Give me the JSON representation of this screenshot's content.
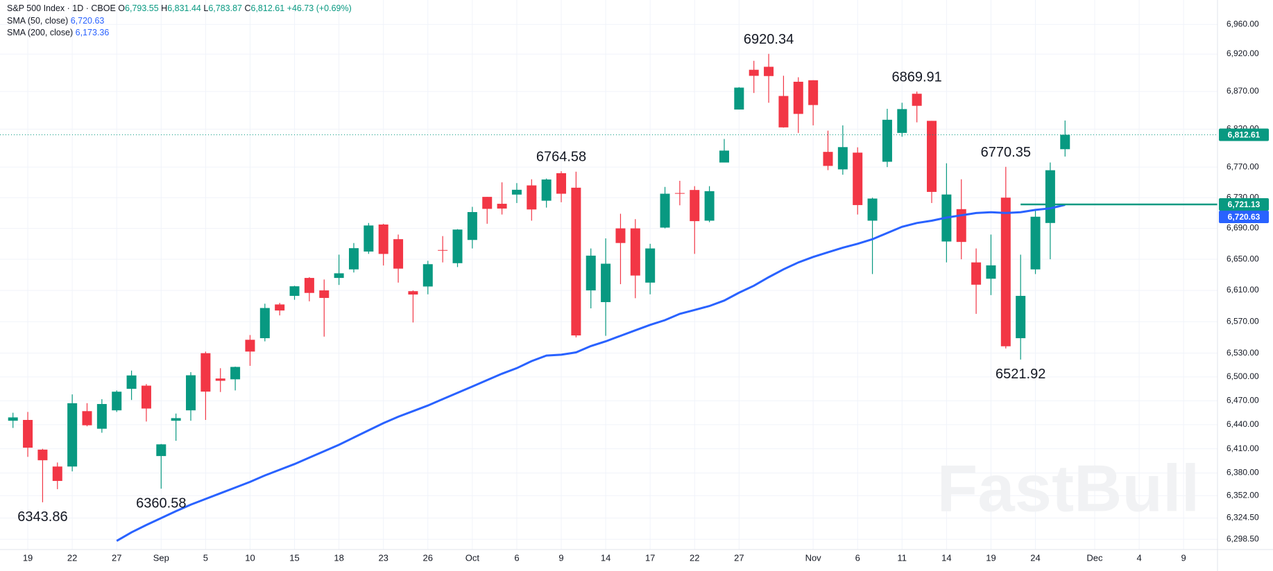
{
  "header": {
    "symbol": "S&P 500 Index · 1D · CBOE",
    "ohlc": [
      {
        "key": "O",
        "value": "6,793.55"
      },
      {
        "key": "H",
        "value": "6,831.44"
      },
      {
        "key": "L",
        "value": "6,783.87"
      },
      {
        "key": "C",
        "value": "6,812.61"
      }
    ],
    "change": "+46.73 (+0.69%)",
    "indicators": [
      {
        "name": "SMA (50, close)",
        "value": "6,720.63"
      },
      {
        "name": "SMA (200, close)",
        "value": "6,173.36"
      }
    ]
  },
  "chart_data": {
    "type": "candlestick",
    "log_scale": true,
    "grid": true,
    "up_color": "#089981",
    "down_color": "#f23645",
    "categories": [
      null,
      "19",
      null,
      null,
      "22",
      null,
      null,
      "27",
      null,
      null,
      "Sep",
      null,
      null,
      "5",
      null,
      null,
      "10",
      null,
      null,
      "15",
      null,
      null,
      "18",
      null,
      null,
      "23",
      null,
      null,
      "26",
      null,
      null,
      "Oct",
      null,
      null,
      "6",
      null,
      null,
      "9",
      null,
      null,
      "14",
      null,
      null,
      "17",
      null,
      null,
      "22",
      null,
      null,
      "27",
      null,
      null,
      null,
      null,
      "Nov",
      null,
      null,
      "6",
      null,
      null,
      "11",
      null,
      null,
      "14",
      null,
      null,
      "19",
      null,
      null,
      "24",
      null,
      null,
      null,
      "Dec",
      null,
      null,
      "4",
      null,
      null,
      "9",
      null,
      null
    ],
    "open": [
      6445,
      6446,
      6409,
      6388,
      6388,
      6457,
      6435,
      6458,
      6485,
      6489,
      6401,
      6445,
      6458,
      6530,
      6498,
      6497,
      6547,
      6549,
      6592,
      6603,
      6626,
      6610,
      6626,
      6637,
      6660,
      6695,
      6676,
      6609,
      6615,
      6662,
      6645,
      6675,
      6731,
      6722,
      6734,
      6746,
      6726,
      6762,
      6743,
      6610,
      6595,
      6690,
      6690,
      6620,
      6691,
      6736,
      6740,
      6700,
      6776,
      6846,
      6899,
      6903,
      6864,
      6883,
      6885,
      6790,
      6767,
      6789,
      6700,
      6777,
      6815,
      6867,
      6831,
      6673,
      6715,
      6646,
      6625,
      6730,
      6549,
      6637,
      6697,
      6793.55,
      null,
      null,
      null,
      null,
      null,
      null,
      null,
      null,
      null,
      null
    ],
    "high": [
      6455,
      6456,
      6410,
      6393,
      6478,
      6467,
      6472,
      6483,
      6508,
      6491,
      6416,
      6454,
      6506,
      6532,
      6511,
      6513,
      6553,
      6593,
      6594,
      6616,
      6627,
      6624,
      6656,
      6671,
      6697,
      6696,
      6682,
      6610,
      6648,
      6680,
      6689,
      6718,
      6731,
      6750,
      6749,
      6754,
      6755,
      6764.58,
      6764,
      6664,
      6677,
      6709,
      6702,
      6670,
      6744,
      6752,
      6745,
      6745,
      6807,
      6875.8,
      6911,
      6920.34,
      6891,
      6889,
      6885,
      6818,
      6825,
      6796,
      6730,
      6847,
      6855,
      6869.91,
      6831,
      6775,
      6754,
      6664,
      6682,
      6770.35,
      6656,
      6713,
      6776,
      6831.44,
      null,
      null,
      null,
      null,
      null,
      null,
      null,
      null,
      null,
      null
    ],
    "low": [
      6436,
      6400,
      6343.86,
      6360,
      6382,
      6438,
      6430,
      6456,
      6471,
      6444,
      6360.58,
      6420,
      6445,
      6446,
      6481,
      6483,
      6514,
      6545,
      6578,
      6598,
      6596,
      6551,
      6617,
      6633,
      6657,
      6642,
      6620,
      6569,
      6605,
      6646,
      6640,
      6664,
      6696,
      6708,
      6723,
      6700,
      6717,
      6724,
      6550,
      6587,
      6552,
      6618,
      6600,
      6605,
      6690,
      6720,
      6657,
      6698,
      6776,
      6846,
      6868,
      6855,
      6822,
      6815,
      6825,
      6766,
      6760,
      6708,
      6631,
      6770,
      6810,
      6829,
      6723,
      6646,
      6650,
      6580,
      6604,
      6536,
      6521.92,
      6631,
      6650,
      6783.87,
      null,
      null,
      null,
      null,
      null,
      null,
      null,
      null,
      null,
      null
    ],
    "close": [
      6449.15,
      6411.37,
      6395.78,
      6370.17,
      6466.91,
      6439.32,
      6465.94,
      6481.4,
      6501.86,
      6460.26,
      6415.54,
      6448.26,
      6502.08,
      6481.5,
      6495.15,
      6512.61,
      6532.04,
      6587.47,
      6584.29,
      6615.28,
      6606.76,
      6600.35,
      6631.96,
      6664.36,
      6693.75,
      6656.92,
      6637.97,
      6604.72,
      6643.7,
      6661.21,
      6688.46,
      6711.2,
      6715.35,
      6715.79,
      6740.28,
      6714.59,
      6753.72,
      6735.11,
      6552.51,
      6654.72,
      6644.31,
      6671.06,
      6629.07,
      6664.01,
      6735.13,
      6735.35,
      6699.4,
      6738.44,
      6791.69,
      6875.16,
      6890.89,
      6890.59,
      6822.34,
      6840.2,
      6851.97,
      6771.55,
      6796.29,
      6720.32,
      6728.8,
      6832.43,
      6846.61,
      6850.92,
      6737.49,
      6734.11,
      6672.41,
      6617.32,
      6642.16,
      6538.76,
      6602.99,
      6705.12,
      6765.88,
      6812.61,
      null,
      null,
      null,
      null,
      null,
      null,
      null,
      null,
      null,
      null
    ],
    "lines": [
      {
        "color": "#2962ff",
        "values": [
          null,
          null,
          null,
          null,
          null,
          null,
          null,
          6296.5,
          6307,
          6316,
          6324.5,
          6333,
          6341,
          6348,
          6355,
          6362,
          6369,
          6377,
          6384,
          6391,
          6399,
          6407,
          6415,
          6424,
          6433,
          6442,
          6450,
          6457,
          6464,
          6472,
          6480,
          6488,
          6496,
          6504,
          6511,
          6520,
          6527,
          6528,
          6531,
          6539,
          6545,
          6552,
          6559,
          6566,
          6572,
          6580,
          6585,
          6590,
          6597,
          6607,
          6616,
          6627,
          6637,
          6646,
          6653,
          6659,
          6665,
          6670,
          6676,
          6684,
          6692,
          6697,
          6700,
          6704,
          6707,
          6710,
          6711,
          6710,
          6711,
          6714,
          6716,
          6720.63,
          null,
          null,
          null,
          null,
          null,
          null,
          null,
          null,
          null,
          null
        ],
        "last_label": {
          "value": 6720.63,
          "label": "6,720.63"
        }
      }
    ],
    "last_price": {
      "value": 6812.61,
      "label": "6,812.61",
      "color": "#089981"
    },
    "hline": {
      "value": 6721.13,
      "label": "6,721.13",
      "color": "#089981"
    },
    "annotations": [
      {
        "value": 6920.34,
        "label": "6920.34"
      },
      {
        "value": 6869.91,
        "label": "6869.91"
      },
      {
        "value": 6764.58,
        "label": "6764.58"
      },
      {
        "value": 6770.35,
        "label": "6770.35"
      },
      {
        "value": 6521.92,
        "label": "6521.92"
      },
      {
        "value": 6343.86,
        "label": "6343.86"
      },
      {
        "value": 6360.58,
        "label": "6360.58"
      }
    ],
    "watermark": "FastBull",
    "ylim": [
      6286,
      6993
    ],
    "yticks": [
      {
        "value": 6298.5,
        "label": "6,298.50"
      },
      {
        "value": 6324.5,
        "label": "6,324.50"
      },
      {
        "value": 6352,
        "label": "6,352.00"
      },
      {
        "value": 6380,
        "label": "6,380.00"
      },
      {
        "value": 6410,
        "label": "6,410.00"
      },
      {
        "value": 6440,
        "label": "6,440.00"
      },
      {
        "value": 6470,
        "label": "6,470.00"
      },
      {
        "value": 6500,
        "label": "6,500.00"
      },
      {
        "value": 6530,
        "label": "6,530.00"
      },
      {
        "value": 6570,
        "label": "6,570.00"
      },
      {
        "value": 6610,
        "label": "6,610.00"
      },
      {
        "value": 6650,
        "label": "6,650.00"
      },
      {
        "value": 6690,
        "label": "6,690.00"
      },
      {
        "value": 6730,
        "label": "6,730.00"
      },
      {
        "value": 6770,
        "label": "6,770.00"
      },
      {
        "value": 6820,
        "label": "6,820.00"
      },
      {
        "value": 6870,
        "label": "6,870.00"
      },
      {
        "value": 6920,
        "label": "6,920.00"
      },
      {
        "value": 6960,
        "label": "6,960.00"
      }
    ]
  }
}
